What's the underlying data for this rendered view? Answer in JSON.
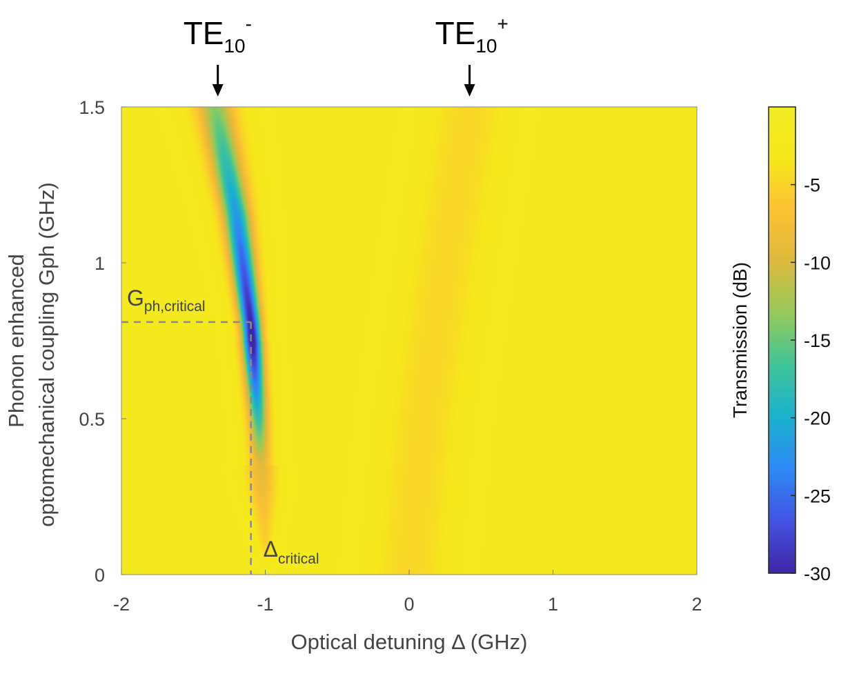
{
  "chart_data": {
    "type": "heatmap",
    "title": "",
    "xlabel": "Optical detuning Δ (GHz)",
    "ylabel_lines": [
      "Phonon enhanced",
      "optomechanical coupling Gph (GHz)"
    ],
    "xlim": [
      -2,
      2
    ],
    "ylim": [
      0,
      1.5
    ],
    "x_ticks": [
      -2,
      -1,
      0,
      1,
      2
    ],
    "x_tick_labels": [
      "-2",
      "-1",
      "0",
      "1",
      "2"
    ],
    "y_ticks": [
      0,
      0.5,
      1,
      1.5
    ],
    "y_tick_labels": [
      "0",
      "0.5",
      "1",
      "1.5"
    ],
    "colorbar": {
      "label": "Transmission (dB)",
      "range": [
        -30,
        0
      ],
      "ticks": [
        -5,
        -10,
        -15,
        -20,
        -25,
        -30
      ],
      "tick_labels": [
        "-5",
        "-10",
        "-15",
        "-20",
        "-25",
        "-30"
      ],
      "colormap": [
        "#3e26a8",
        "#4353e2",
        "#2e88f5",
        "#1bb1cf",
        "#3fc39a",
        "#93ca5b",
        "#dcba3d",
        "#fcc034",
        "#f6e81b",
        "#f0ed22"
      ]
    },
    "dips": [
      {
        "name": "TE10-",
        "path": [
          [
            -1.0,
            0.1
          ],
          [
            -1.05,
            0.5
          ],
          [
            -1.1,
            0.8
          ],
          [
            -1.2,
            1.15
          ],
          [
            -1.35,
            1.5
          ]
        ],
        "min_db": -30,
        "min_at_y": 0.75
      },
      {
        "name": "TE10+",
        "path": [
          [
            0.0,
            0.0
          ],
          [
            0.1,
            0.5
          ],
          [
            0.25,
            1.0
          ],
          [
            0.42,
            1.5
          ]
        ],
        "min_db": -6
      }
    ],
    "modes": [
      {
        "label": "TE",
        "sub": "10",
        "sup": "-",
        "x": -1.33
      },
      {
        "label": "TE",
        "sub": "10",
        "sup": "+",
        "x": 0.42
      }
    ],
    "critical_point": {
      "x": -1.1,
      "y": 0.81
    },
    "annotations": {
      "g_critical": {
        "main": "G",
        "sub": "ph,critical"
      },
      "delta_critical": {
        "main": "Δ",
        "sub": "critical"
      }
    }
  }
}
